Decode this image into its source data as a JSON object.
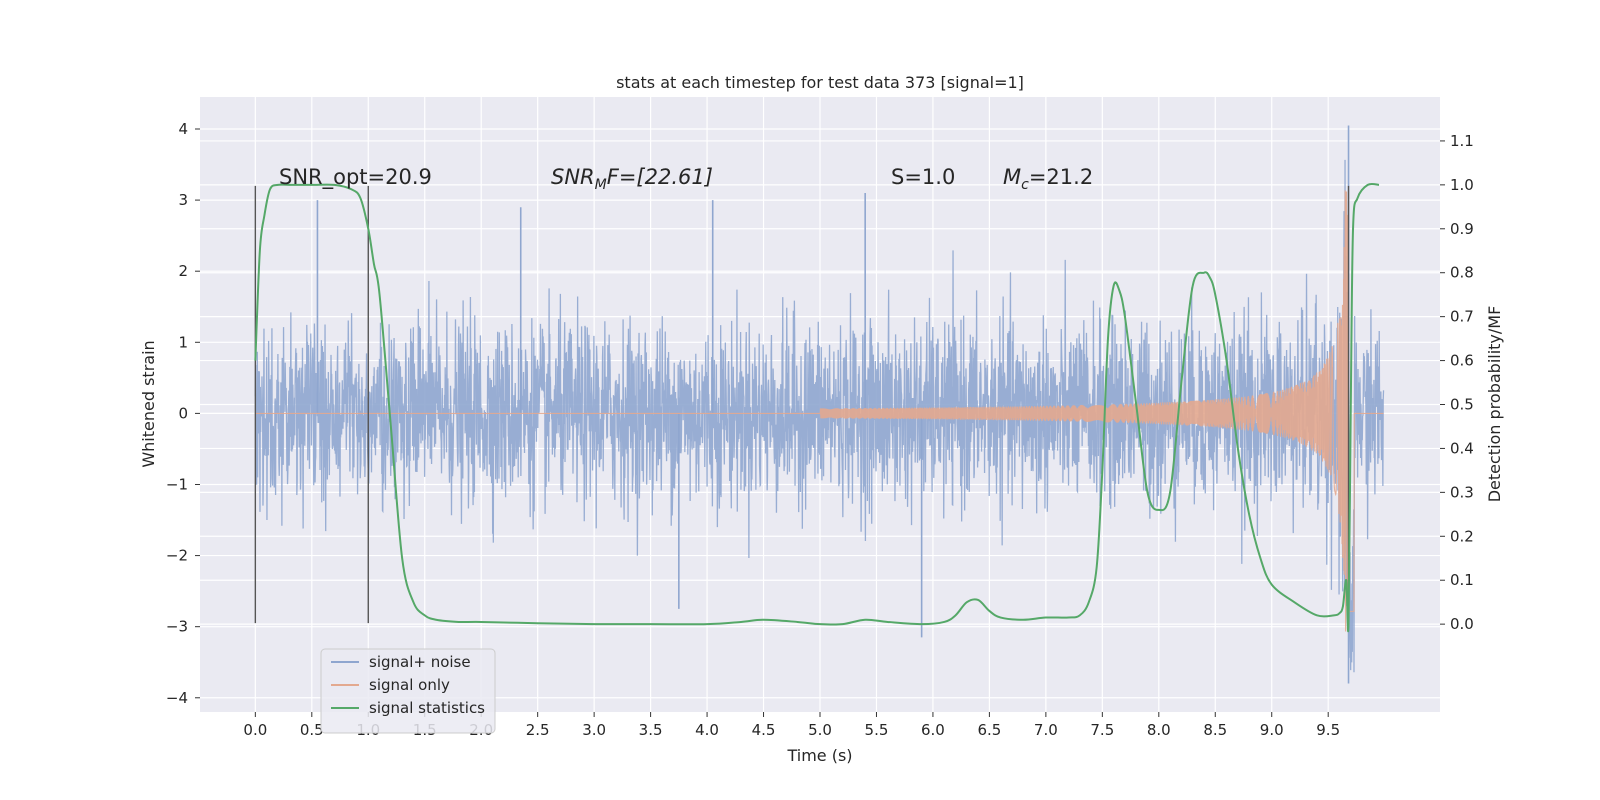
{
  "chart_data": {
    "type": "line",
    "title": "stats at each timestep for test data 373 [signal=1]",
    "xlabel": "Time (s)",
    "ylabel_left": "Whitened strain",
    "ylabel_right": "Detection probability/MF",
    "xlim": [
      -0.49,
      10.49
    ],
    "ylim_left": [
      -4.2,
      4.45
    ],
    "ylim_right": [
      -0.2,
      1.2
    ],
    "x_ticks": [
      "0.0",
      "0.5",
      "1.0",
      "1.5",
      "2.0",
      "2.5",
      "3.0",
      "3.5",
      "4.0",
      "4.5",
      "5.0",
      "5.5",
      "6.0",
      "6.5",
      "7.0",
      "7.5",
      "8.0",
      "8.5",
      "9.0",
      "9.5"
    ],
    "y_ticks_left": [
      "4",
      "3",
      "2",
      "1",
      "0",
      "−1",
      "−2",
      "−3",
      "−4"
    ],
    "y_ticks_right": [
      "1.1",
      "1.0",
      "0.9",
      "0.8",
      "0.7",
      "0.6",
      "0.5",
      "0.4",
      "0.3",
      "0.2",
      "0.1",
      "0.0"
    ],
    "grid": true,
    "legend": {
      "placement": "lower-left",
      "entries": [
        {
          "label": "signal+ noise",
          "color": "#8fa6cf"
        },
        {
          "label": "signal only",
          "color": "#e3a98f"
        },
        {
          "label": "signal statistics",
          "color": "#55a868"
        }
      ]
    },
    "annotations": {
      "snr_opt": "SNR_opt=20.9",
      "snr_mf_base": "SNR",
      "snr_mf_sub": "M",
      "snr_mf_rest": "F=[22.61]",
      "s_stat": "S=1.0",
      "mc_base": "M",
      "mc_sub": "c",
      "mc_rest": "=21.2"
    },
    "vertical_markers": [
      {
        "x": 0.0,
        "y_range": [
          -2.95,
          3.2
        ]
      },
      {
        "x": 1.0,
        "y_range": [
          -2.95,
          3.2
        ]
      },
      {
        "x": 9.68,
        "y_range": [
          -2.95,
          3.2
        ]
      }
    ],
    "noise_envelope": {
      "t_range": [
        0.0,
        9.99
      ],
      "typical_amplitude": 1.4,
      "peaks": [
        {
          "x": 0.55,
          "y": 3.0
        },
        {
          "x": 2.35,
          "y": 2.9
        },
        {
          "x": 4.05,
          "y": 3.0
        },
        {
          "x": 5.4,
          "y": 3.1
        },
        {
          "x": 5.9,
          "y": -3.15
        },
        {
          "x": 3.75,
          "y": -2.75
        },
        {
          "x": 9.68,
          "y": 4.05
        },
        {
          "x": 9.68,
          "y": -3.8
        }
      ]
    },
    "signal_only": {
      "merger_time": 9.68,
      "peak_amplitude": 3.2,
      "amplitude_at_6s": 0.06,
      "amplitude_at_9s": 0.3
    },
    "series_statistics": {
      "name": "signal statistics",
      "axis": "right",
      "x": [
        0.0,
        0.04,
        0.08,
        0.13,
        0.2,
        0.3,
        0.5,
        0.7,
        0.85,
        0.93,
        1.0,
        1.05,
        1.1,
        1.2,
        1.3,
        1.4,
        1.5,
        1.6,
        1.8,
        2.0,
        2.5,
        3.0,
        3.5,
        4.0,
        4.3,
        4.5,
        4.8,
        5.0,
        5.2,
        5.4,
        5.6,
        5.9,
        6.1,
        6.2,
        6.3,
        6.4,
        6.5,
        6.6,
        6.8,
        7.0,
        7.2,
        7.3,
        7.38,
        7.45,
        7.5,
        7.55,
        7.6,
        7.65,
        7.7,
        7.8,
        7.9,
        8.0,
        8.1,
        8.2,
        8.3,
        8.4,
        8.45,
        8.5,
        8.6,
        8.7,
        8.8,
        8.9,
        9.0,
        9.2,
        9.4,
        9.55,
        9.6,
        9.63,
        9.66,
        9.68,
        9.7,
        9.72,
        9.76,
        9.85,
        9.95
      ],
      "values": [
        0.6,
        0.85,
        0.93,
        0.99,
        1.0,
        1.0,
        1.0,
        1.0,
        0.99,
        0.97,
        0.9,
        0.82,
        0.75,
        0.45,
        0.15,
        0.05,
        0.02,
        0.01,
        0.005,
        0.005,
        0.002,
        0.0,
        0.0,
        0.0,
        0.005,
        0.01,
        0.005,
        0.0,
        0.0,
        0.01,
        0.005,
        0.0,
        0.005,
        0.02,
        0.05,
        0.055,
        0.03,
        0.015,
        0.01,
        0.015,
        0.015,
        0.02,
        0.05,
        0.13,
        0.35,
        0.65,
        0.77,
        0.76,
        0.7,
        0.5,
        0.3,
        0.26,
        0.3,
        0.55,
        0.77,
        0.8,
        0.79,
        0.75,
        0.6,
        0.4,
        0.25,
        0.15,
        0.09,
        0.05,
        0.02,
        0.02,
        0.025,
        0.04,
        0.1,
        0.0,
        0.5,
        0.9,
        0.97,
        1.0,
        1.0
      ]
    }
  }
}
